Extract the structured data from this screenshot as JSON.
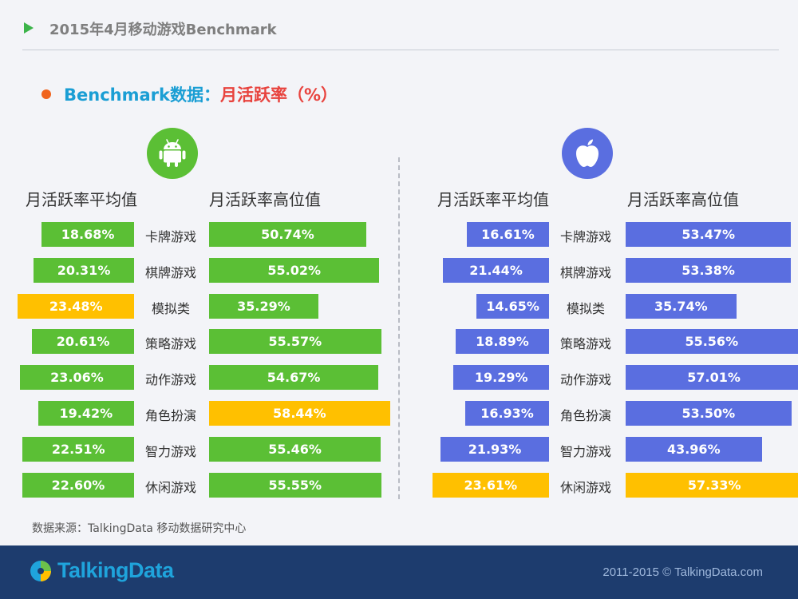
{
  "header": {
    "title": "2015年4月移动游戏Benchmark"
  },
  "subtitle": {
    "part_a": "Benchmark数据：",
    "part_b": "月活跃率（%）"
  },
  "colors": {
    "android": "#5bbf35",
    "ios": "#5a6ee0",
    "highlight": "#ffc000",
    "accent": "#1a9ed4",
    "red": "#e8433e"
  },
  "panels": {
    "android": {
      "icon": "android-icon",
      "left_header": "月活跃率平均值",
      "right_header": "月活跃率高位值"
    },
    "ios": {
      "icon": "apple-icon",
      "left_header": "月活跃率平均值",
      "right_header": "月活跃率高位值"
    }
  },
  "chart_data": [
    {
      "type": "bar",
      "categories": [
        "卡牌游戏",
        "棋牌游戏",
        "模拟类",
        "策略游戏",
        "动作游戏",
        "角色扮演",
        "智力游戏",
        "休闲游戏"
      ],
      "series": [
        {
          "name": "月活跃率平均值",
          "values": [
            18.68,
            20.31,
            23.48,
            20.61,
            23.06,
            19.42,
            22.51,
            22.6
          ],
          "labels": [
            "18.68%",
            "20.31%",
            "23.48%",
            "20.61%",
            "23.06%",
            "19.42%",
            "22.51%",
            "22.60%"
          ],
          "highlight_index": 2
        },
        {
          "name": "月活跃率高位值",
          "values": [
            50.74,
            55.02,
            35.29,
            55.57,
            54.67,
            58.44,
            55.46,
            55.55
          ],
          "labels": [
            "50.74%",
            "55.02%",
            "35.29%",
            "55.57%",
            "54.67%",
            "58.44%",
            "55.46%",
            "55.55%"
          ],
          "highlight_index": 5
        }
      ]
    },
    {
      "type": "bar",
      "categories": [
        "卡牌游戏",
        "棋牌游戏",
        "模拟类",
        "策略游戏",
        "动作游戏",
        "角色扮演",
        "智力游戏",
        "休闲游戏"
      ],
      "series": [
        {
          "name": "月活跃率平均值",
          "values": [
            16.61,
            21.44,
            14.65,
            18.89,
            19.29,
            16.93,
            21.93,
            23.61
          ],
          "labels": [
            "16.61%",
            "21.44%",
            "14.65%",
            "18.89%",
            "19.29%",
            "16.93%",
            "21.93%",
            "23.61%"
          ],
          "highlight_index": 7
        },
        {
          "name": "月活跃率高位值",
          "values": [
            53.47,
            53.38,
            35.74,
            55.56,
            57.01,
            53.5,
            43.96,
            57.33
          ],
          "labels": [
            "53.47%",
            "53.38%",
            "35.74%",
            "55.56%",
            "57.01%",
            "53.50%",
            "43.96%",
            "57.33%"
          ],
          "highlight_index": 7
        }
      ]
    }
  ],
  "source": "数据来源：TalkingData 移动数据研究中心",
  "footer": {
    "logo_text": "TalkingData",
    "copyright": "2011-2015 © TalkingData.com"
  }
}
